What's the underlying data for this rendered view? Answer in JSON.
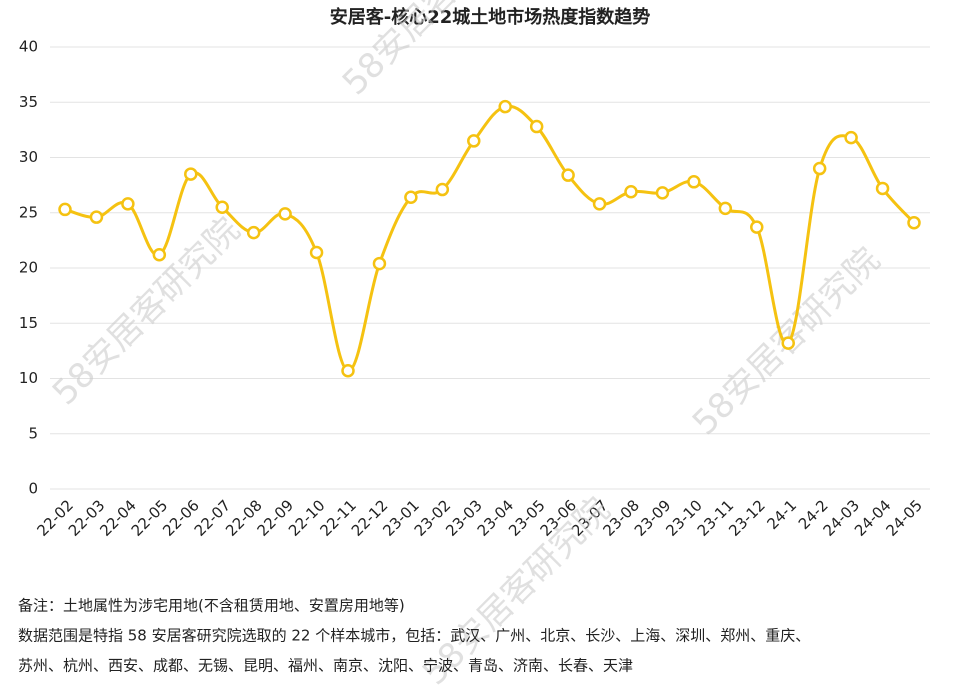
{
  "chart_data": {
    "type": "line",
    "title": "安居客-核心22城土地市场热度指数趋势",
    "categories": [
      "22-02",
      "22-03",
      "22-04",
      "22-05",
      "22-06",
      "22-07",
      "22-08",
      "22-09",
      "22-10",
      "22-11",
      "22-12",
      "23-01",
      "23-02",
      "23-03",
      "23-04",
      "23-05",
      "23-06",
      "23-07",
      "23-08",
      "23-09",
      "23-10",
      "23-11",
      "23-12",
      "24-1",
      "24-2",
      "24-03",
      "24-04",
      "24-05"
    ],
    "series": [
      {
        "color": "#f5c211",
        "values": [
          25.3,
          24.6,
          25.8,
          21.2,
          28.5,
          25.5,
          23.2,
          24.9,
          21.4,
          10.7,
          20.4,
          26.4,
          27.1,
          31.5,
          34.6,
          32.8,
          28.4,
          25.8,
          26.9,
          26.8,
          27.8,
          25.4,
          23.7,
          13.2,
          29.0,
          31.8,
          27.2,
          24.1
        ]
      }
    ],
    "ylim": [
      0,
      40
    ],
    "yticks": [
      0,
      5,
      10,
      15,
      20,
      25,
      30,
      35,
      40
    ],
    "grid": true,
    "notes": [
      "备注：土地属性为涉宅用地(不含租赁用地、安置房用地等)",
      "数据范围是特指 58 安居客研究院选取的 22 个样本城市，包括：武汉、广州、北京、长沙、上海、深圳、郑州、重庆、",
      "苏州、杭州、西安、成都、无锡、昆明、福州、南京、沈阳、宁波、青岛、济南、长春、天津"
    ],
    "watermark": "58安居客研究院"
  }
}
